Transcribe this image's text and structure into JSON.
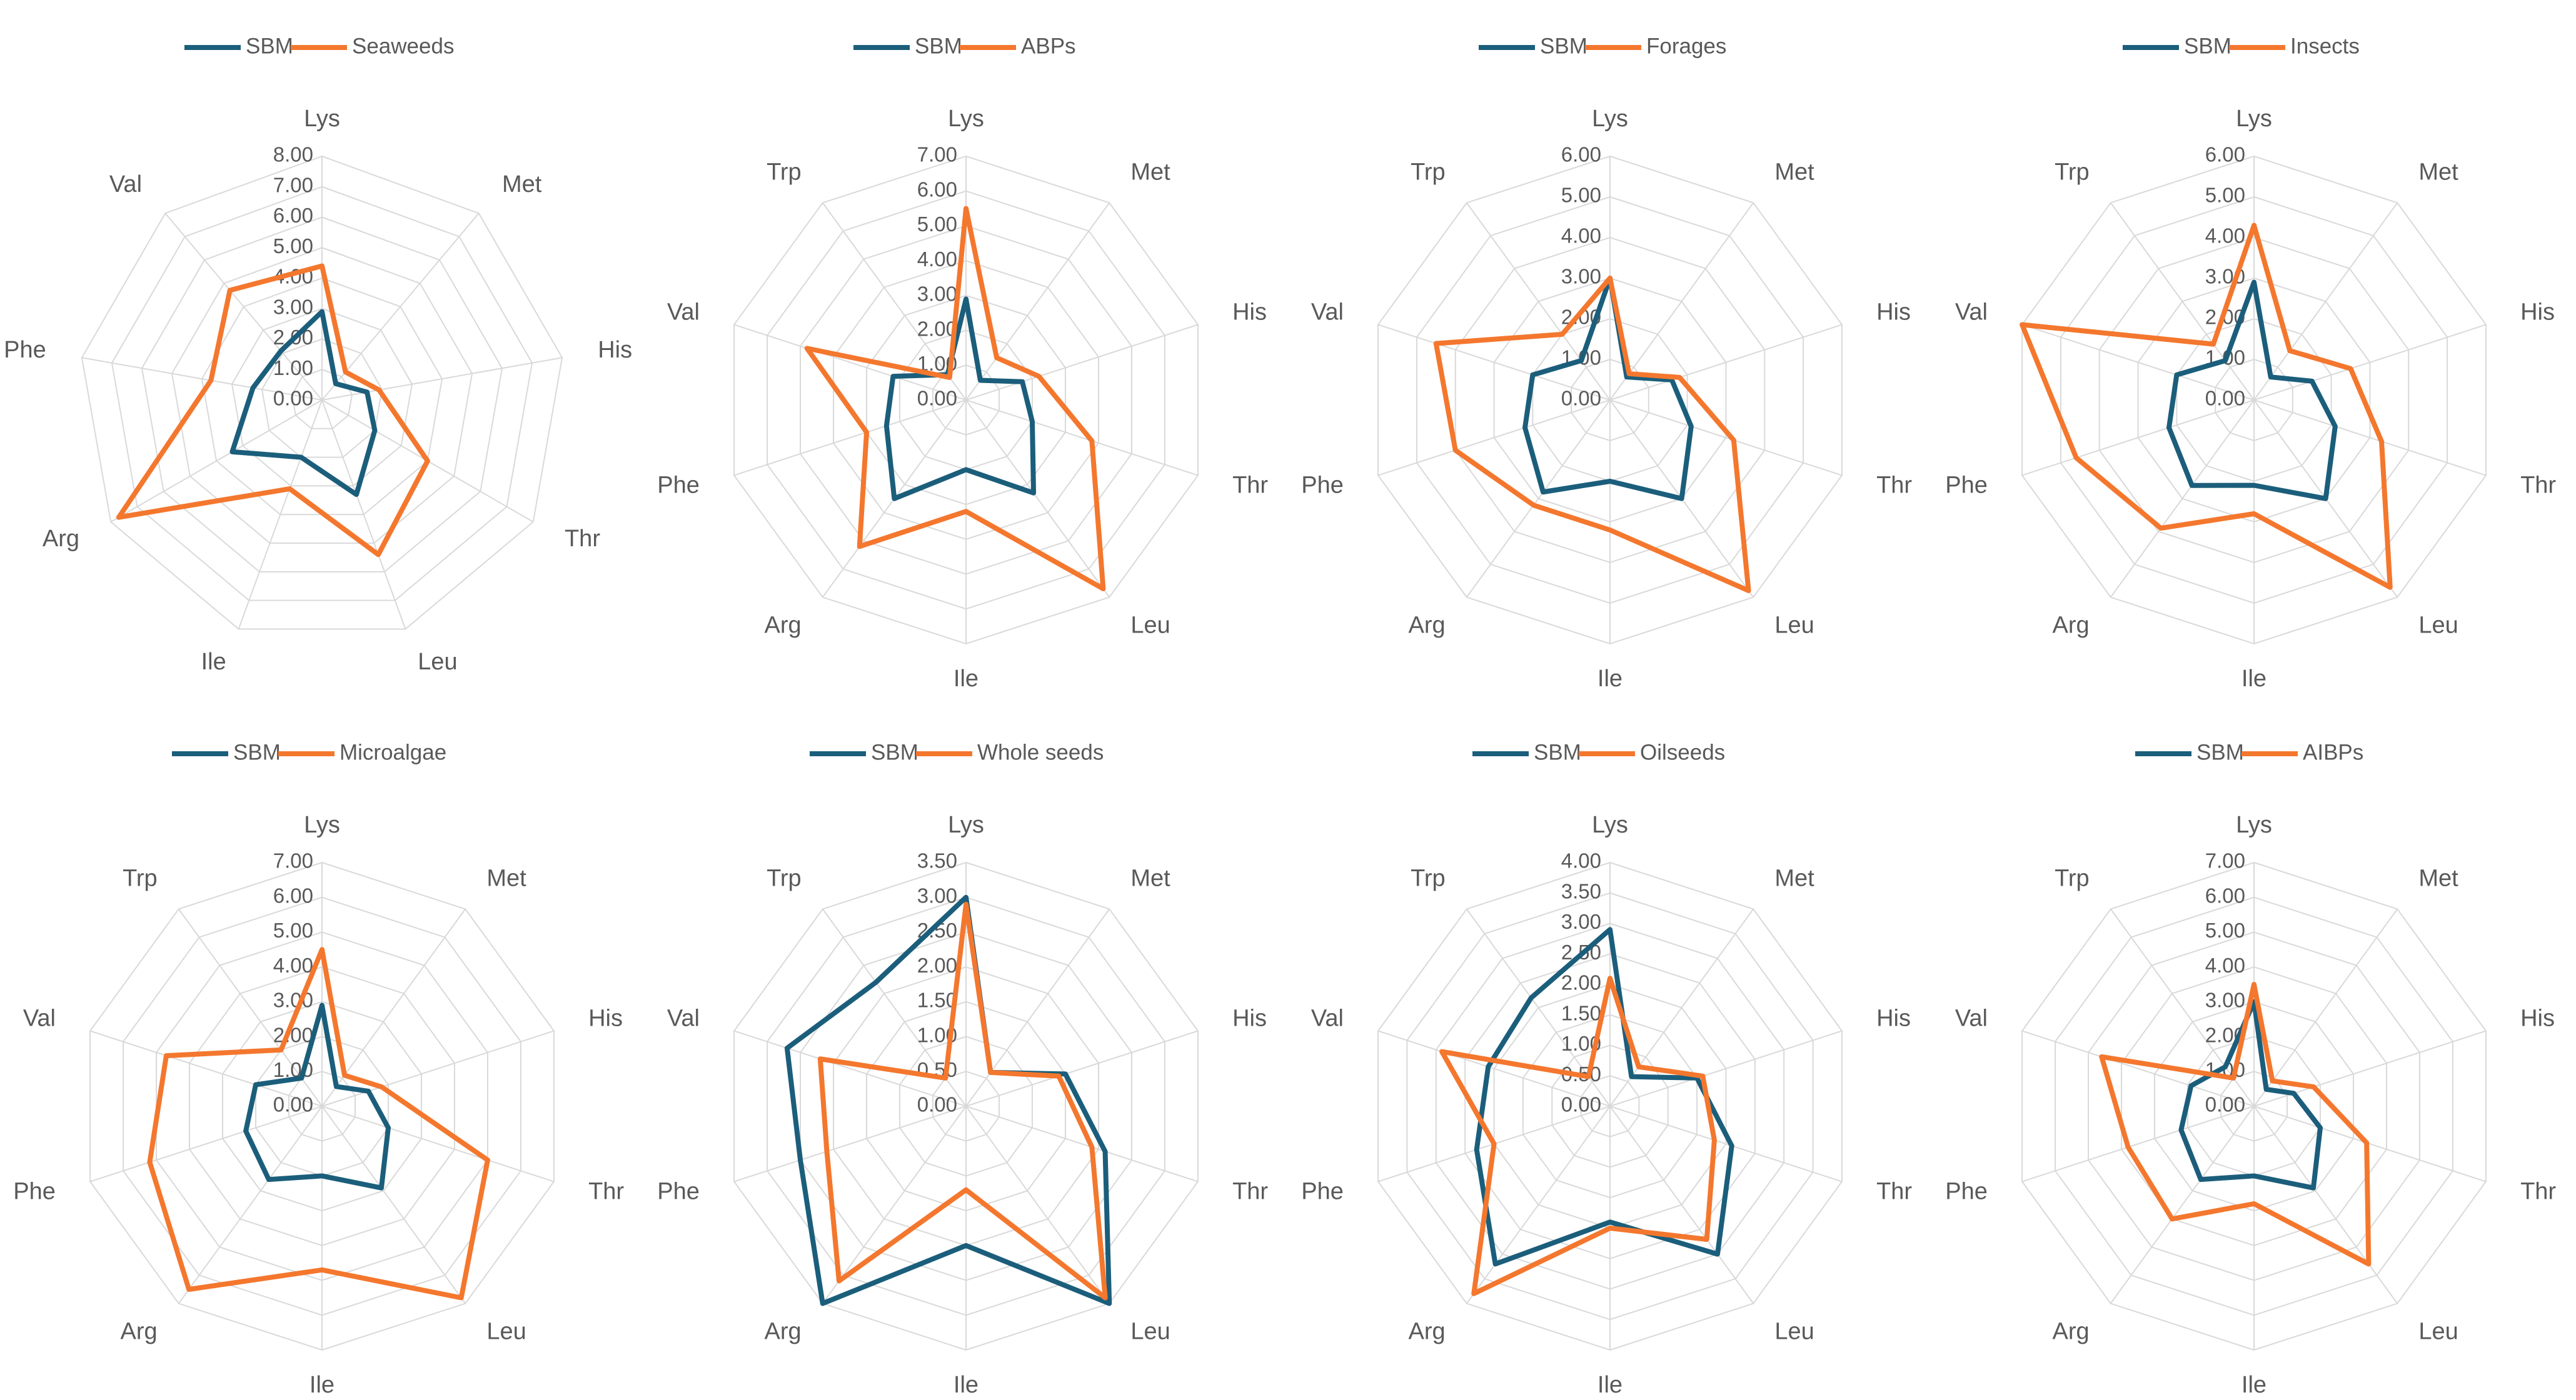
{
  "chart_data": [
    {
      "type": "radar",
      "categories": [
        "Lys",
        "Met",
        "His",
        "Thr",
        "Leu",
        "Ile",
        "Arg",
        "Phe",
        "Val"
      ],
      "series": [
        {
          "name": "SBM",
          "color": "#1b5e7b",
          "values": [
            2.9,
            0.7,
            1.5,
            2.0,
            3.3,
            2.0,
            3.4,
            2.3,
            2.1
          ]
        },
        {
          "name": "Seaweeds",
          "color": "#f4772e",
          "values": [
            4.4,
            1.2,
            1.9,
            4.0,
            5.4,
            3.1,
            7.7,
            3.7,
            4.7
          ]
        }
      ],
      "ylim": [
        0,
        8
      ],
      "yticks": [
        {
          "value": 0,
          "label": "0.00"
        },
        {
          "value": 1,
          "label": "1.00"
        },
        {
          "value": 2,
          "label": "2.00"
        },
        {
          "value": 3,
          "label": "3.00"
        },
        {
          "value": 4,
          "label": "4.00"
        },
        {
          "value": 5,
          "label": "5.00"
        },
        {
          "value": 6,
          "label": "6.00"
        },
        {
          "value": 7,
          "label": "7.00"
        },
        {
          "value": 8,
          "label": "8.00"
        }
      ]
    },
    {
      "type": "radar",
      "categories": [
        "Lys",
        "Met",
        "His",
        "Thr",
        "Leu",
        "Ile",
        "Arg",
        "Phe",
        "Val",
        "Trp"
      ],
      "series": [
        {
          "name": "SBM",
          "color": "#1b5e7b",
          "values": [
            2.9,
            0.7,
            1.7,
            2.0,
            3.3,
            2.0,
            3.5,
            2.4,
            2.2,
            0.9
          ]
        },
        {
          "name": "ABPs",
          "color": "#f4772e",
          "values": [
            5.5,
            1.5,
            2.2,
            3.8,
            6.7,
            3.2,
            5.2,
            3.0,
            4.8,
            0.8
          ]
        }
      ],
      "ylim": [
        0,
        7
      ],
      "yticks": [
        {
          "value": 0,
          "label": "0.00"
        },
        {
          "value": 1,
          "label": "1.00"
        },
        {
          "value": 2,
          "label": "2.00"
        },
        {
          "value": 3,
          "label": "3.00"
        },
        {
          "value": 4,
          "label": "4.00"
        },
        {
          "value": 5,
          "label": "5.00"
        },
        {
          "value": 6,
          "label": "6.00"
        },
        {
          "value": 7,
          "label": "7.00"
        }
      ]
    },
    {
      "type": "radar",
      "categories": [
        "Lys",
        "Met",
        "His",
        "Thr",
        "Leu",
        "Ile",
        "Arg",
        "Phe",
        "Val",
        "Trp"
      ],
      "series": [
        {
          "name": "SBM",
          "color": "#1b5e7b",
          "values": [
            3.0,
            0.7,
            1.6,
            2.1,
            3.0,
            2.0,
            2.8,
            2.2,
            2.0,
            1.2
          ]
        },
        {
          "name": "Forages",
          "color": "#f4772e",
          "values": [
            3.0,
            0.8,
            1.8,
            3.2,
            5.8,
            3.2,
            3.2,
            4.0,
            4.5,
            2.0
          ]
        }
      ],
      "ylim": [
        0,
        6
      ],
      "yticks": [
        {
          "value": 0,
          "label": "0.00"
        },
        {
          "value": 1,
          "label": "1.00"
        },
        {
          "value": 2,
          "label": "2.00"
        },
        {
          "value": 3,
          "label": "3.00"
        },
        {
          "value": 4,
          "label": "4.00"
        },
        {
          "value": 5,
          "label": "5.00"
        },
        {
          "value": 6,
          "label": "6.00"
        }
      ]
    },
    {
      "type": "radar",
      "categories": [
        "Lys",
        "Met",
        "His",
        "Thr",
        "Leu",
        "Ile",
        "Arg",
        "Phe",
        "Val",
        "Trp"
      ],
      "series": [
        {
          "name": "SBM",
          "color": "#1b5e7b",
          "values": [
            2.9,
            0.7,
            1.5,
            2.1,
            3.0,
            2.1,
            2.6,
            2.2,
            2.0,
            1.2
          ]
        },
        {
          "name": "Insects",
          "color": "#f4772e",
          "values": [
            4.3,
            1.5,
            2.5,
            3.3,
            5.7,
            2.8,
            3.9,
            4.6,
            6.0,
            1.7
          ]
        }
      ],
      "ylim": [
        0,
        6
      ],
      "yticks": [
        {
          "value": 0,
          "label": "0.00"
        },
        {
          "value": 1,
          "label": "1.00"
        },
        {
          "value": 2,
          "label": "2.00"
        },
        {
          "value": 3,
          "label": "3.00"
        },
        {
          "value": 4,
          "label": "4.00"
        },
        {
          "value": 5,
          "label": "5.00"
        },
        {
          "value": 6,
          "label": "6.00"
        }
      ]
    },
    {
      "type": "radar",
      "categories": [
        "Lys",
        "Met",
        "His",
        "Thr",
        "Leu",
        "Ile",
        "Arg",
        "Phe",
        "Val",
        "Trp"
      ],
      "series": [
        {
          "name": "SBM",
          "color": "#1b5e7b",
          "values": [
            2.9,
            0.7,
            1.4,
            2.0,
            2.9,
            2.0,
            2.6,
            2.3,
            2.0,
            1.0
          ]
        },
        {
          "name": "Microalgae",
          "color": "#f4772e",
          "values": [
            4.5,
            1.1,
            1.8,
            5.0,
            6.8,
            4.7,
            6.5,
            5.2,
            4.7,
            2.0
          ]
        }
      ],
      "ylim": [
        0,
        7
      ],
      "yticks": [
        {
          "value": 0,
          "label": "0.00"
        },
        {
          "value": 1,
          "label": "1.00"
        },
        {
          "value": 2,
          "label": "2.00"
        },
        {
          "value": 3,
          "label": "3.00"
        },
        {
          "value": 4,
          "label": "4.00"
        },
        {
          "value": 5,
          "label": "5.00"
        },
        {
          "value": 6,
          "label": "6.00"
        },
        {
          "value": 7,
          "label": "7.00"
        }
      ]
    },
    {
      "type": "radar",
      "categories": [
        "Lys",
        "Met",
        "His",
        "Thr",
        "Leu",
        "Ile",
        "Arg",
        "Phe",
        "Val",
        "Trp"
      ],
      "series": [
        {
          "name": "SBM",
          "color": "#1b5e7b",
          "values": [
            3.0,
            0.6,
            1.5,
            2.1,
            3.5,
            2.0,
            3.5,
            2.5,
            2.7,
            2.2
          ]
        },
        {
          "name": "Whole seeds",
          "color": "#f4772e",
          "values": [
            2.9,
            0.6,
            1.4,
            1.9,
            3.4,
            1.2,
            3.1,
            2.1,
            2.2,
            0.5
          ]
        }
      ],
      "ylim": [
        0,
        3.5
      ],
      "yticks": [
        {
          "value": 0,
          "label": "0.00"
        },
        {
          "value": 0.5,
          "label": "0.50"
        },
        {
          "value": 1,
          "label": "1.00"
        },
        {
          "value": 1.5,
          "label": "1.50"
        },
        {
          "value": 2,
          "label": "2.00"
        },
        {
          "value": 2.5,
          "label": "2.50"
        },
        {
          "value": 3,
          "label": "3.00"
        },
        {
          "value": 3.5,
          "label": "3.50"
        }
      ]
    },
    {
      "type": "radar",
      "categories": [
        "Lys",
        "Met",
        "His",
        "Thr",
        "Leu",
        "Ile",
        "Arg",
        "Phe",
        "Val",
        "Trp"
      ],
      "series": [
        {
          "name": "SBM",
          "color": "#1b5e7b",
          "values": [
            2.9,
            0.6,
            1.5,
            2.1,
            3.0,
            1.9,
            3.2,
            2.3,
            2.1,
            2.2
          ]
        },
        {
          "name": "Oilseeds",
          "color": "#f4772e",
          "values": [
            2.1,
            0.8,
            1.6,
            1.8,
            2.7,
            2.0,
            3.8,
            2.0,
            2.9,
            0.6
          ]
        }
      ],
      "ylim": [
        0,
        4
      ],
      "yticks": [
        {
          "value": 0,
          "label": "0.00"
        },
        {
          "value": 0.5,
          "label": "0.50"
        },
        {
          "value": 1,
          "label": "1.00"
        },
        {
          "value": 1.5,
          "label": "1.50"
        },
        {
          "value": 2,
          "label": "2.00"
        },
        {
          "value": 2.5,
          "label": "2.50"
        },
        {
          "value": 3,
          "label": "3.00"
        },
        {
          "value": 3.5,
          "label": "3.50"
        },
        {
          "value": 4,
          "label": "4.00"
        }
      ]
    },
    {
      "type": "radar",
      "categories": [
        "Lys",
        "Met",
        "His",
        "Thr",
        "Leu",
        "Ile",
        "Arg",
        "Phe",
        "Val",
        "Trp"
      ],
      "series": [
        {
          "name": "SBM",
          "color": "#1b5e7b",
          "values": [
            3.0,
            0.6,
            1.2,
            2.0,
            2.9,
            2.0,
            2.6,
            2.2,
            1.9,
            1.4
          ]
        },
        {
          "name": "AIBPs",
          "color": "#f4772e",
          "values": [
            3.5,
            0.9,
            1.8,
            3.4,
            5.6,
            2.8,
            4.0,
            3.8,
            4.6,
            1.0
          ]
        }
      ],
      "ylim": [
        0,
        7
      ],
      "yticks": [
        {
          "value": 0,
          "label": "0.00"
        },
        {
          "value": 1,
          "label": "1.00"
        },
        {
          "value": 2,
          "label": "2.00"
        },
        {
          "value": 3,
          "label": "3.00"
        },
        {
          "value": 4,
          "label": "4.00"
        },
        {
          "value": 5,
          "label": "5.00"
        },
        {
          "value": 6,
          "label": "6.00"
        },
        {
          "value": 7,
          "label": "7.00"
        }
      ]
    }
  ]
}
